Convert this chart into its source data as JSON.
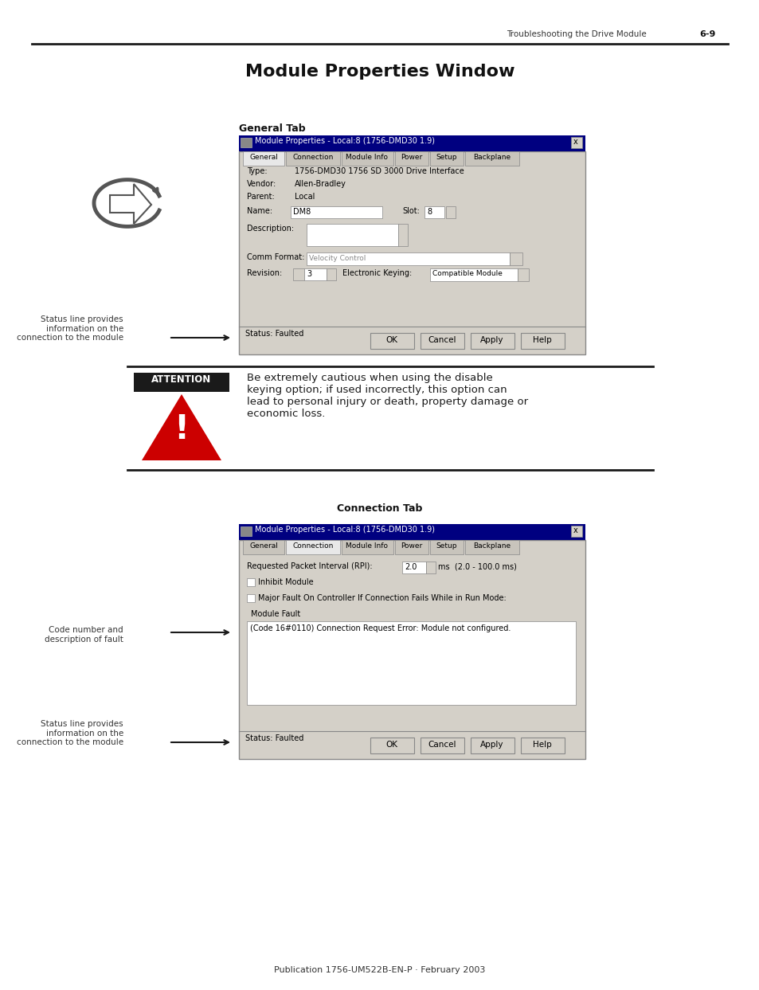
{
  "page_title": "Module Properties Window",
  "header_text": "Troubleshooting the Drive Module",
  "page_num": "6-9",
  "footer_text": "Publication 1756-UM522B-EN-P · February 2003",
  "general_tab_label": "General Tab",
  "connection_tab_label": "Connection Tab",
  "attention_text": "Be extremely cautious when using the disable\nkeying option; if used incorrectly, this option can\nlead to personal injury or death, property damage or\neconomic loss.",
  "attention_label": "ATTENTION",
  "status_label1": "Status line provides\ninformation on the\nconnection to the module",
  "status_label2": "Status line provides\ninformation on the\nconnection to the module",
  "code_label": "Code number and\ndescription of fault",
  "general_window_title": "Module Properties - Local:8 (1756-DMD30 1.9)",
  "general_tabs": [
    "General",
    "Connection",
    "Module Info",
    "Power",
    "Setup",
    "Backplane"
  ],
  "general_fields": [
    [
      "Type:",
      "1756-DMD30 1756 SD 3000 Drive Interface"
    ],
    [
      "Vendor:",
      "Allen-Bradley"
    ],
    [
      "Parent:",
      "Local"
    ]
  ],
  "general_name": "DM8",
  "general_slot": "8",
  "general_comm_format": "Velocity Control",
  "general_revision": "3",
  "general_keying": "Compatible Module",
  "general_status": "Status: Faulted",
  "conn_window_title": "Module Properties - Local:8 (1756-DMD30 1.9)",
  "conn_tabs": [
    "General",
    "Connection",
    "Module Info",
    "Power",
    "Setup",
    "Backplane"
  ],
  "conn_rpi": "2.0",
  "conn_rpi_range": "(2.0 - 100.0 ms)",
  "conn_fault_text": "(Code 16#0110) Connection Request Error: Module not configured.",
  "conn_status": "Status: Faulted",
  "bg_color": "#ffffff",
  "dialog_bg": "#d4d0c8",
  "dialog_title_bg": "#000080",
  "tab_active_bg": "#d4d0c8",
  "field_bg": "#ffffff",
  "attention_bg": "#1a1a1a",
  "red_color": "#cc0000"
}
